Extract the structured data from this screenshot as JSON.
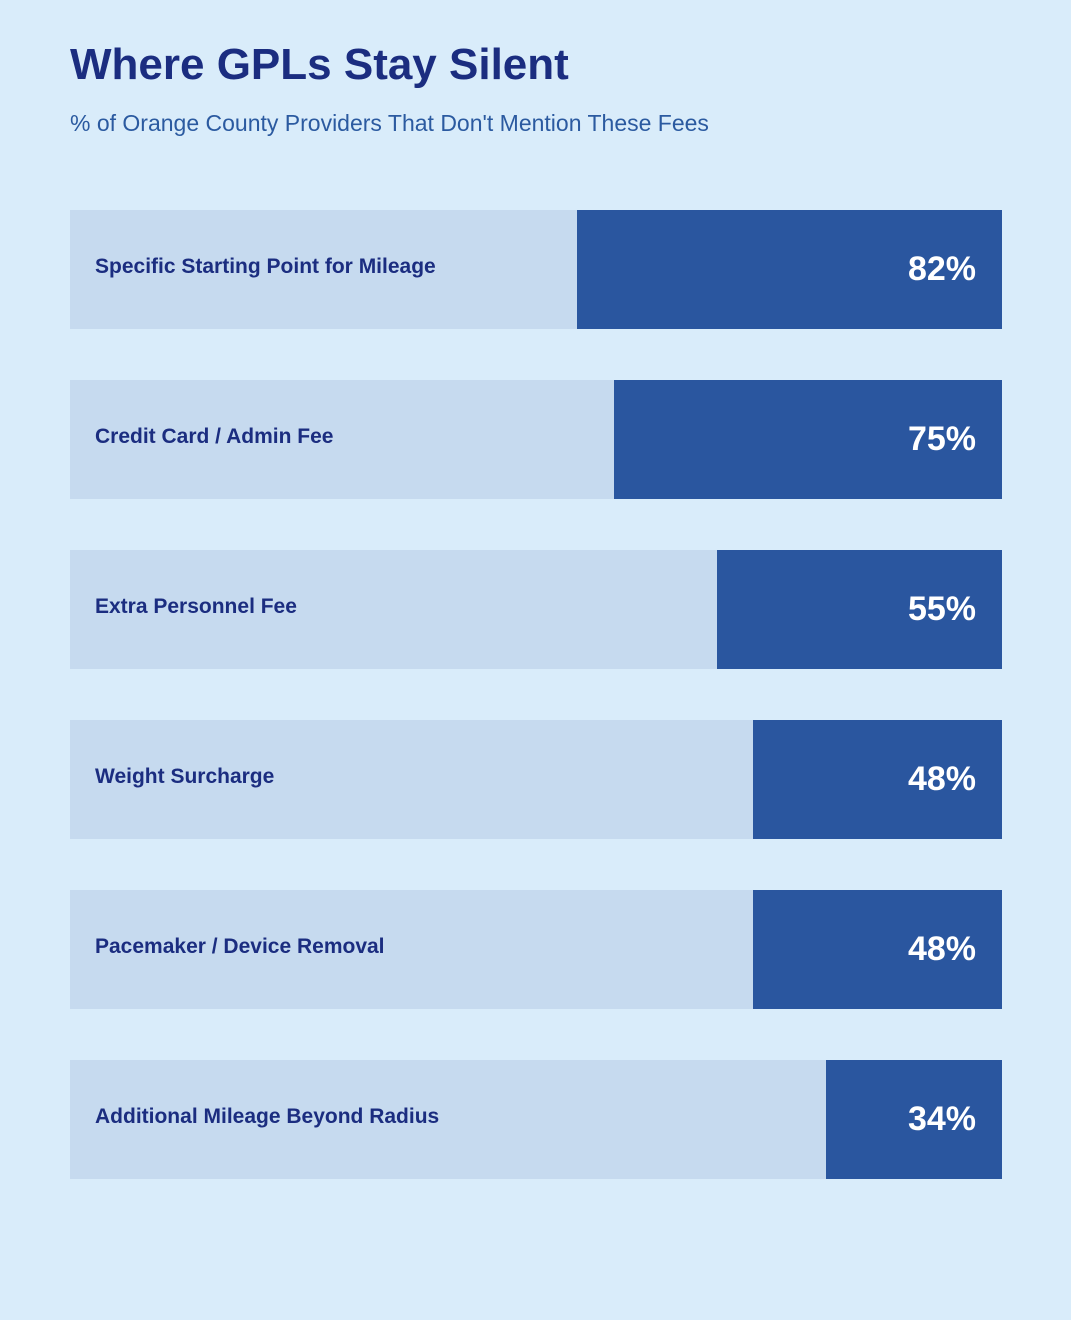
{
  "chart_data": {
    "type": "bar",
    "orientation": "horizontal",
    "title": "Where GPLs Stay Silent",
    "subtitle": "% of Orange County Providers That Don't Mention These Fees",
    "categories": [
      "Specific Starting Point for Mileage",
      "Credit Card / Admin Fee",
      "Extra Personnel Fee",
      "Weight Surcharge",
      "Pacemaker / Device Removal",
      "Additional Mileage Beyond Radius"
    ],
    "values": [
      82,
      75,
      55,
      48,
      48,
      34
    ],
    "value_labels": [
      "82%",
      "75%",
      "55%",
      "48%",
      "48%",
      "34%"
    ],
    "xlim": [
      0,
      180
    ],
    "unit": "%",
    "grid": false,
    "legend": "none",
    "colors": {
      "background": "#d9ecfa",
      "track": "#c6daef",
      "bar": "#2a569f",
      "title": "#1b2d80",
      "subtitle": "#2b5aa0",
      "label": "#1b2d80",
      "value": "#ffffff"
    }
  }
}
